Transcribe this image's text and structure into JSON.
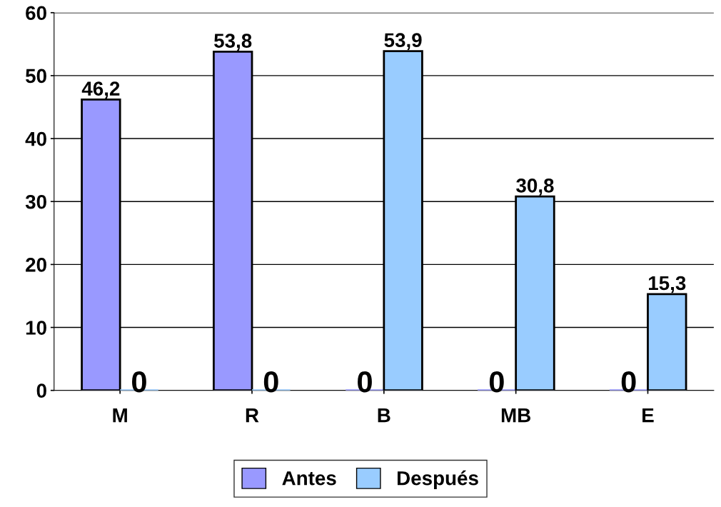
{
  "chart_data": {
    "type": "bar",
    "categories": [
      "M",
      "R",
      "B",
      "MB",
      "E"
    ],
    "series": [
      {
        "name": "Antes",
        "color": "#9999ff",
        "values": [
          46.2,
          53.8,
          0,
          0,
          0
        ],
        "value_labels": [
          "46,2",
          "53,8",
          "0",
          "0",
          "0"
        ]
      },
      {
        "name": "Después",
        "color": "#99ccff",
        "values": [
          0,
          0,
          53.9,
          30.8,
          15.3
        ],
        "value_labels": [
          "0",
          "0",
          "53,9",
          "30,8",
          "15,3"
        ]
      }
    ],
    "ylim": [
      0,
      60
    ],
    "yticks": [
      0,
      10,
      20,
      30,
      40,
      50,
      60
    ],
    "grid": "y",
    "legend": "bottom"
  }
}
